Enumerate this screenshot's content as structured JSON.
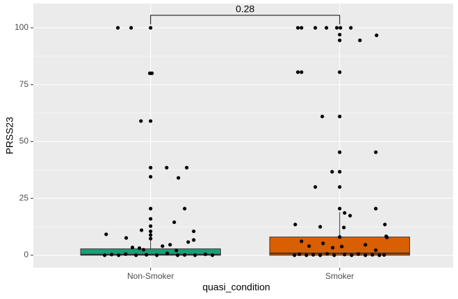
{
  "chart_data": {
    "type": "box",
    "x_label": "quasi_condition",
    "y_label": "PRSS23",
    "categories": [
      "Non-Smoker",
      "Smoker"
    ],
    "colors": [
      "#1b9e77",
      "#d95f02"
    ],
    "boxes": [
      {
        "q1": 0,
        "median": 0.3,
        "q3": 2.8,
        "whisker_low": 0,
        "whisker_high": 6.7
      },
      {
        "q1": 0,
        "median": 0.8,
        "q3": 8,
        "whisker_low": 0,
        "whisker_high": 19
      }
    ],
    "points": {
      "x": [
        0.827,
        0.897,
        1.0,
        0.996,
        1.007,
        0.949,
        1.0,
        1.085,
        1.0,
        1.191,
        1.0,
        1.147,
        1.18,
        1.0,
        1.0,
        1.125,
        1.0,
        0.952,
        1.228,
        0.765,
        1.0,
        1.0,
        0.871,
        1.0,
        1.228,
        1.199,
        1.103,
        1.063,
        0.904,
        0.941,
        0.963,
        1.136,
        0.757,
        0.794,
        0.831,
        0.868,
        0.923,
        0.978,
        1.033,
        1.088,
        1.143,
        1.18,
        1.235,
        1.29,
        1.327,
        1.779,
        1.798,
        1.871,
        1.93,
        1.985,
        2.004,
        2.059,
        2.0,
        2.0,
        2.107,
        2.195,
        1.779,
        1.798,
        2.0,
        1.908,
        2.0,
        2.191,
        2.0,
        1.96,
        2.0,
        2.0,
        1.871,
        2.0,
        2.191,
        2.026,
        2.055,
        1.765,
        2.239,
        1.897,
        2.022,
        2.246,
        2.0,
        2.25,
        1.798,
        1.912,
        2.136,
        1.838,
        2.011,
        1.963,
        2.191,
        1.761,
        1.787,
        1.824,
        1.86,
        1.897,
        1.934,
        1.971,
        2.026,
        2.063,
        2.099,
        2.136,
        2.173,
        2.21,
        2.235
      ],
      "y": [
        100,
        100,
        100,
        80,
        80,
        59,
        59,
        38.5,
        38.5,
        38.5,
        34.5,
        34,
        20.5,
        20.5,
        16,
        14.5,
        12.8,
        11,
        10.5,
        9.2,
        10.5,
        8.9,
        7.6,
        7.3,
        6.7,
        5.8,
        4.6,
        4,
        3.4,
        3.1,
        2.4,
        2.1,
        0,
        0.3,
        0,
        0.5,
        0,
        0.2,
        0,
        0.8,
        0,
        0.1,
        0,
        0.4,
        0,
        100,
        100,
        100,
        100,
        100,
        100,
        100,
        97,
        94.5,
        94.5,
        96.7,
        80.5,
        80.5,
        80.5,
        61,
        61,
        45.3,
        45.3,
        36.7,
        36.7,
        30,
        30,
        20.5,
        20.5,
        18.6,
        17.4,
        13.5,
        13.5,
        12.5,
        12.2,
        8.3,
        8,
        7.8,
        6.1,
        5.2,
        4.6,
        4,
        3.8,
        3.3,
        2.2,
        0,
        0.4,
        0,
        0.2,
        0,
        0.6,
        0,
        0.3,
        0,
        0.5,
        0,
        0.2,
        0,
        0.1
      ]
    },
    "bracket": {
      "label": "0.28",
      "x": [
        1,
        2
      ],
      "y": 105.5,
      "tip_y": 101.5
    },
    "xlim": [
      0.38,
      2.6
    ],
    "ylim": [
      -5.5,
      110.7
    ],
    "yticks": [
      0,
      25,
      50,
      75,
      100
    ],
    "minor_yticks": [
      12.5,
      37.5,
      62.5,
      87.5
    ],
    "grid": true
  }
}
